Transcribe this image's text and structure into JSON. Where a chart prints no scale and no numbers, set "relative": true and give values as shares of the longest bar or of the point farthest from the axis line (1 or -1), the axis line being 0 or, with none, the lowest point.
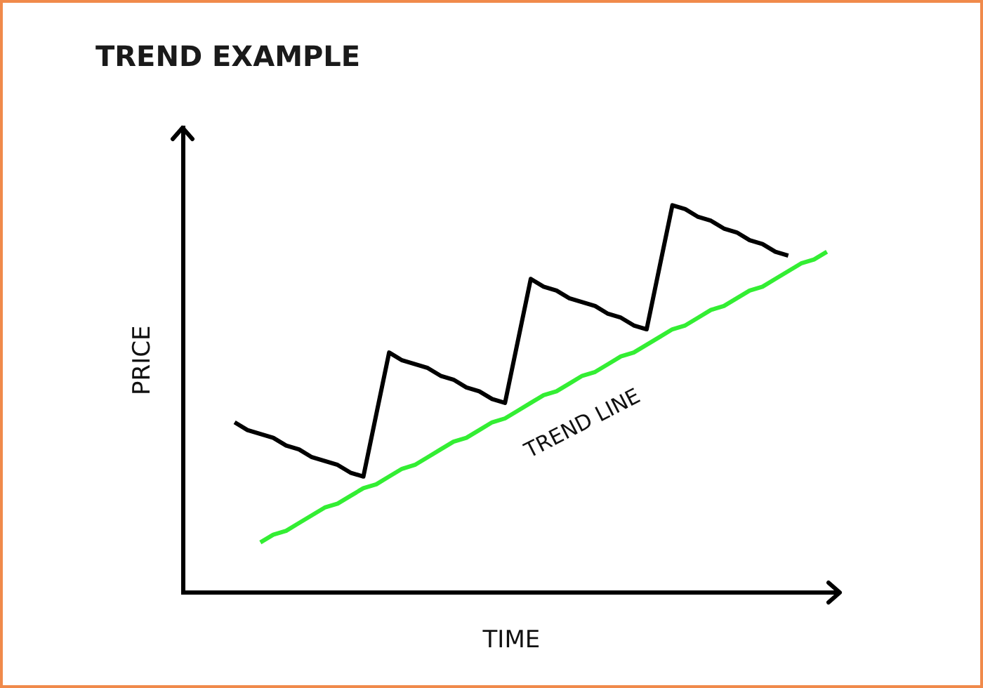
{
  "chart_data": {
    "type": "line",
    "title": "TREND EXAMPLE",
    "xlabel": "TIME",
    "ylabel": "PRICE",
    "relative": true,
    "grid": false,
    "legend": false,
    "marker": "none",
    "categories": [
      null,
      null,
      null,
      null,
      null,
      null,
      null,
      null,
      null,
      null,
      null,
      null,
      null,
      null,
      null,
      null,
      null,
      null,
      null,
      null,
      null,
      null,
      null,
      null,
      null,
      null,
      null,
      null,
      null,
      null,
      null,
      null,
      null,
      null,
      null,
      null,
      null,
      null,
      null,
      null,
      null,
      null,
      null,
      null,
      null,
      null,
      null,
      null,
      null,
      null,
      null,
      null
    ],
    "series": [
      {
        "color": "#000000",
        "values": [
          null,
          null,
          null,
          null,
          0.44,
          0.42,
          0.41,
          0.4,
          0.38,
          0.37,
          0.35,
          0.34,
          0.33,
          0.31,
          0.3,
          0.46,
          0.62,
          0.6,
          0.59,
          0.58,
          0.56,
          0.55,
          0.53,
          0.52,
          0.5,
          0.49,
          0.65,
          0.81,
          0.79,
          0.78,
          0.76,
          0.75,
          0.74,
          0.72,
          0.71,
          0.69,
          0.68,
          0.84,
          1,
          0.99,
          0.97,
          0.96,
          0.94,
          0.93,
          0.91,
          0.9,
          0.88,
          0.87,
          null,
          null,
          null,
          null
        ]
      },
      {
        "color": "#33ee33",
        "values": [
          null,
          null,
          null,
          null,
          null,
          null,
          0.13,
          0.15,
          0.16,
          0.18,
          0.2,
          0.22,
          0.23,
          0.25,
          0.27,
          0.28,
          0.3,
          0.32,
          0.33,
          0.35,
          0.37,
          0.39,
          0.4,
          0.42,
          0.44,
          0.45,
          0.47,
          0.49,
          0.51,
          0.52,
          0.54,
          0.56,
          0.57,
          0.59,
          0.61,
          0.62,
          0.64,
          0.66,
          0.68,
          0.69,
          0.71,
          0.73,
          0.74,
          0.76,
          0.78,
          0.79,
          0.81,
          0.83,
          0.85,
          0.86,
          0.88,
          null
        ]
      }
    ],
    "annotations": [
      "TREND LINE"
    ]
  }
}
